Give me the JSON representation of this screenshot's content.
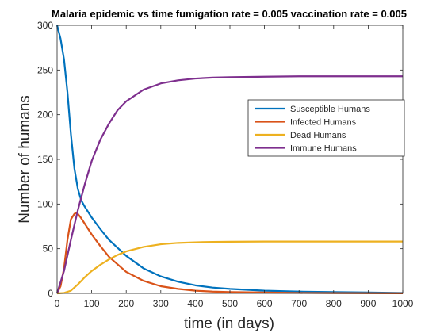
{
  "chart_data": {
    "type": "line",
    "title": "Malaria epidemic vs time fumigation rate = 0.005 vaccination rate = 0.005",
    "xlabel": "time (in days)",
    "ylabel": "Number of humans",
    "xlim": [
      0,
      1000
    ],
    "ylim": [
      0,
      300
    ],
    "xticks": [
      0,
      100,
      200,
      300,
      400,
      500,
      600,
      700,
      800,
      900,
      1000
    ],
    "yticks": [
      0,
      50,
      100,
      150,
      200,
      250,
      300
    ],
    "grid": false,
    "legend_position": "right, upper-middle",
    "series": [
      {
        "name": "Susceptible Humans",
        "color": "#0072BD",
        "x": [
          0,
          10,
          20,
          30,
          40,
          50,
          60,
          70,
          80,
          100,
          125,
          150,
          200,
          250,
          300,
          350,
          400,
          450,
          500,
          550,
          600,
          700,
          800,
          900,
          1000
        ],
        "y": [
          300,
          285,
          262,
          225,
          178,
          140,
          117,
          104,
          97,
          85,
          72,
          60,
          42,
          28,
          19,
          13,
          9,
          6.5,
          5,
          4,
          3,
          2,
          1.5,
          1,
          0.5
        ]
      },
      {
        "name": "Infected Humans",
        "color": "#D95319",
        "x": [
          0,
          10,
          20,
          30,
          40,
          50,
          55,
          60,
          70,
          80,
          100,
          125,
          150,
          200,
          250,
          300,
          350,
          400,
          450,
          500,
          600,
          700,
          800,
          900,
          1000
        ],
        "y": [
          0,
          8,
          28,
          60,
          83,
          89,
          90,
          89,
          84,
          78,
          66,
          53,
          41,
          24,
          14,
          8,
          5,
          3,
          2,
          1.5,
          1,
          0.5,
          0.3,
          0.2,
          0.1
        ]
      },
      {
        "name": "Dead Humans",
        "color": "#EDB120",
        "x": [
          0,
          20,
          40,
          60,
          80,
          100,
          125,
          150,
          175,
          200,
          250,
          300,
          350,
          400,
          450,
          500,
          600,
          700,
          800,
          900,
          1000
        ],
        "y": [
          0,
          0.5,
          3,
          10,
          18,
          25,
          32,
          38,
          43,
          47,
          52,
          55,
          56.5,
          57.2,
          57.6,
          57.8,
          58,
          58,
          58,
          58,
          58
        ]
      },
      {
        "name": "Immune Humans",
        "color": "#7E2F8E",
        "x": [
          0,
          20,
          40,
          60,
          80,
          100,
          125,
          150,
          175,
          200,
          250,
          300,
          350,
          400,
          450,
          500,
          600,
          700,
          800,
          900,
          1000
        ],
        "y": [
          0,
          25,
          60,
          93,
          122,
          148,
          172,
          190,
          205,
          215,
          228,
          235,
          238.5,
          240.5,
          241.5,
          242,
          242.5,
          243,
          243,
          243,
          243
        ]
      }
    ]
  }
}
